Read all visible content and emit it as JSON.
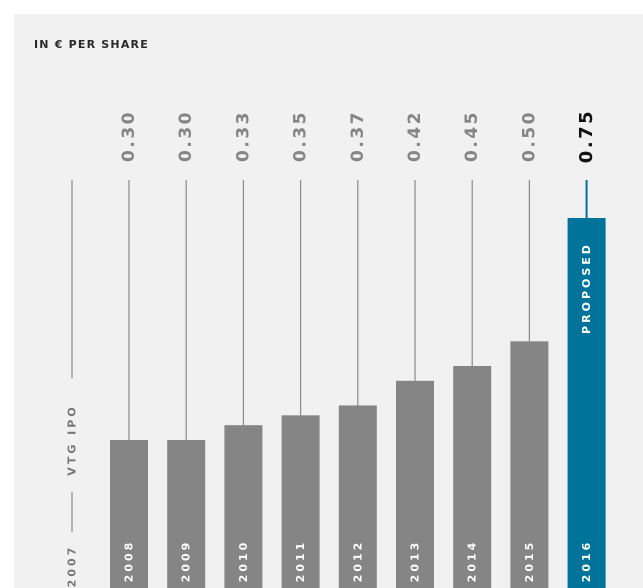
{
  "unit_label": "IN € PER SHARE",
  "chart_data": {
    "type": "bar",
    "ylabel": "IN € PER SHARE",
    "ylim": [
      0,
      0.8
    ],
    "categories": [
      "2008",
      "2009",
      "2010",
      "2011",
      "2012",
      "2013",
      "2014",
      "2015",
      "2016"
    ],
    "values": [
      0.3,
      0.3,
      0.33,
      0.35,
      0.37,
      0.42,
      0.45,
      0.5,
      0.75
    ],
    "value_labels": [
      "0.30",
      "0.30",
      "0.33",
      "0.35",
      "0.37",
      "0.42",
      "0.45",
      "0.50",
      "0.75"
    ],
    "highlight_index": 8,
    "highlight_label": "PROPOSED",
    "annotation": {
      "year": "2007",
      "label": "VTG IPO"
    },
    "colors": {
      "bar": "#858585",
      "highlight": "#00739a",
      "line": "#8a8a8a",
      "value_text": "#858585",
      "highlight_text": "#111111",
      "bar_text": "#ffffff",
      "annotation_text": "#777777"
    }
  }
}
